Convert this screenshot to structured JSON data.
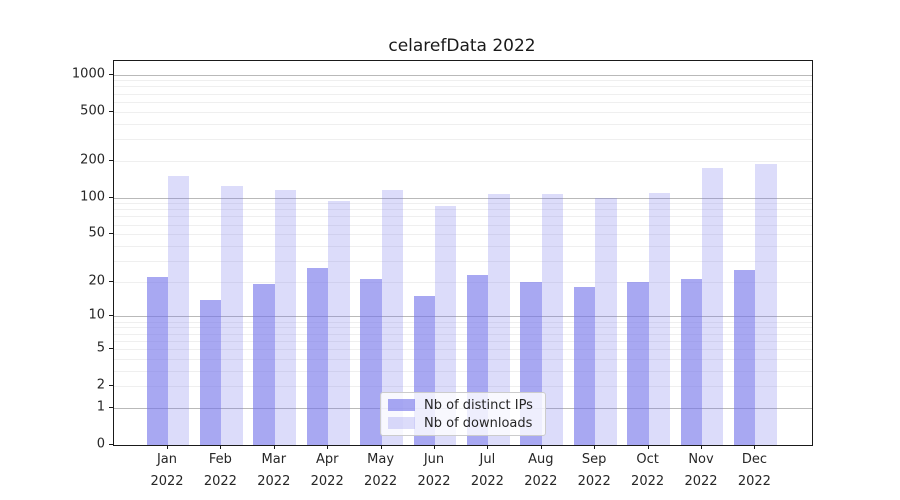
{
  "chart_data": {
    "type": "bar",
    "title": "celarefData 2022",
    "categories": [
      "Jan 2022",
      "Feb 2022",
      "Mar 2022",
      "Apr 2022",
      "May 2022",
      "Jun 2022",
      "Jul 2022",
      "Aug 2022",
      "Sep 2022",
      "Oct 2022",
      "Nov 2022",
      "Dec 2022"
    ],
    "series": [
      {
        "name": "Nb of distinct IPs",
        "color": "rgba(114,114,234,0.62)",
        "values": [
          22,
          14,
          19,
          26,
          21,
          15,
          23,
          20,
          18,
          20,
          21,
          25
        ]
      },
      {
        "name": "Nb of downloads",
        "color": "rgba(114,114,234,0.25)",
        "values": [
          150,
          124,
          115,
          94,
          115,
          86,
          106,
          106,
          100,
          109,
          175,
          188
        ]
      }
    ],
    "yscale": "log1p",
    "yticks": [
      0,
      1,
      2,
      5,
      10,
      20,
      50,
      100,
      200,
      500,
      1000
    ],
    "ylim": [
      0,
      1286
    ],
    "xlabel": "",
    "ylabel": "",
    "grid": true,
    "legend_position": "lower center"
  },
  "colors": {
    "grid_major": "#b9b9b9",
    "grid_minor": "#efefef",
    "axis_frame": "#1a1a1a",
    "text": "#262626",
    "legend_bg": "rgba(255,255,255,0.8)",
    "legend_border": "#cccccc"
  }
}
